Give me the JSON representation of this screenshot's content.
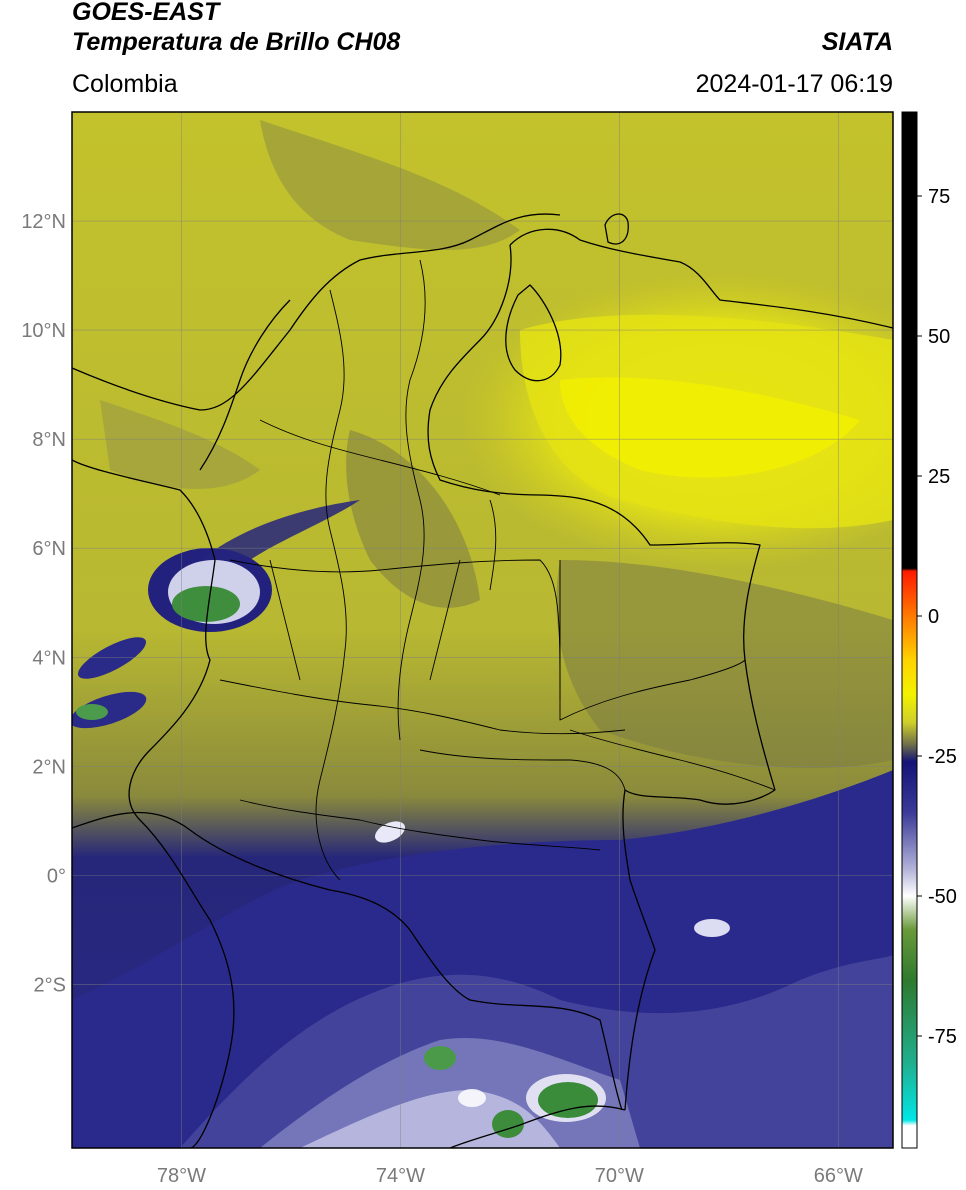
{
  "header": {
    "satellite": "GOES-EAST",
    "product": "Temperatura de Brillo CH08",
    "region": "Colombia",
    "agency": "SIATA",
    "timestamp": "2024-01-17 06:19"
  },
  "map": {
    "lon_range": [
      -80,
      -65
    ],
    "lat_range": [
      -5,
      14
    ],
    "lat_ticks": [
      {
        "value": 12,
        "label": "12°N"
      },
      {
        "value": 10,
        "label": "10°N"
      },
      {
        "value": 8,
        "label": "8°N"
      },
      {
        "value": 6,
        "label": "6°N"
      },
      {
        "value": 4,
        "label": "4°N"
      },
      {
        "value": 2,
        "label": "2°N"
      },
      {
        "value": 0,
        "label": "0°"
      },
      {
        "value": -2,
        "label": "2°S"
      }
    ],
    "lon_ticks": [
      {
        "value": -78,
        "label": "78°W"
      },
      {
        "value": -74,
        "label": "74°W"
      },
      {
        "value": -70,
        "label": "70°W"
      },
      {
        "value": -66,
        "label": "66°W"
      }
    ],
    "gridlines": true
  },
  "colorbar": {
    "range": [
      -95,
      90
    ],
    "ticks": [
      {
        "value": 75,
        "label": "75"
      },
      {
        "value": 50,
        "label": "50"
      },
      {
        "value": 25,
        "label": "25"
      },
      {
        "value": 0,
        "label": "0"
      },
      {
        "value": -25,
        "label": "-25"
      },
      {
        "value": -50,
        "label": "-50"
      },
      {
        "value": -75,
        "label": "-75"
      }
    ],
    "stops": [
      {
        "value": 90,
        "color": "#000000"
      },
      {
        "value": 8.5,
        "color": "#000000"
      },
      {
        "value": 8,
        "color": "#ff1a00"
      },
      {
        "value": 0,
        "color": "#ff7a00"
      },
      {
        "value": -8,
        "color": "#ffd400"
      },
      {
        "value": -14,
        "color": "#f2f200"
      },
      {
        "value": -19,
        "color": "#cfcf2a"
      },
      {
        "value": -23,
        "color": "#6e6e4a"
      },
      {
        "value": -26,
        "color": "#141478"
      },
      {
        "value": -35,
        "color": "#3a3a98"
      },
      {
        "value": -45,
        "color": "#b0b0d8"
      },
      {
        "value": -50,
        "color": "#ffffff"
      },
      {
        "value": -56,
        "color": "#6a9a3a"
      },
      {
        "value": -65,
        "color": "#2e7a2e"
      },
      {
        "value": -80,
        "color": "#20b090"
      },
      {
        "value": -90,
        "color": "#00e6e6"
      },
      {
        "value": -91,
        "color": "#ffffff"
      },
      {
        "value": -95,
        "color": "#ffffff"
      }
    ]
  }
}
